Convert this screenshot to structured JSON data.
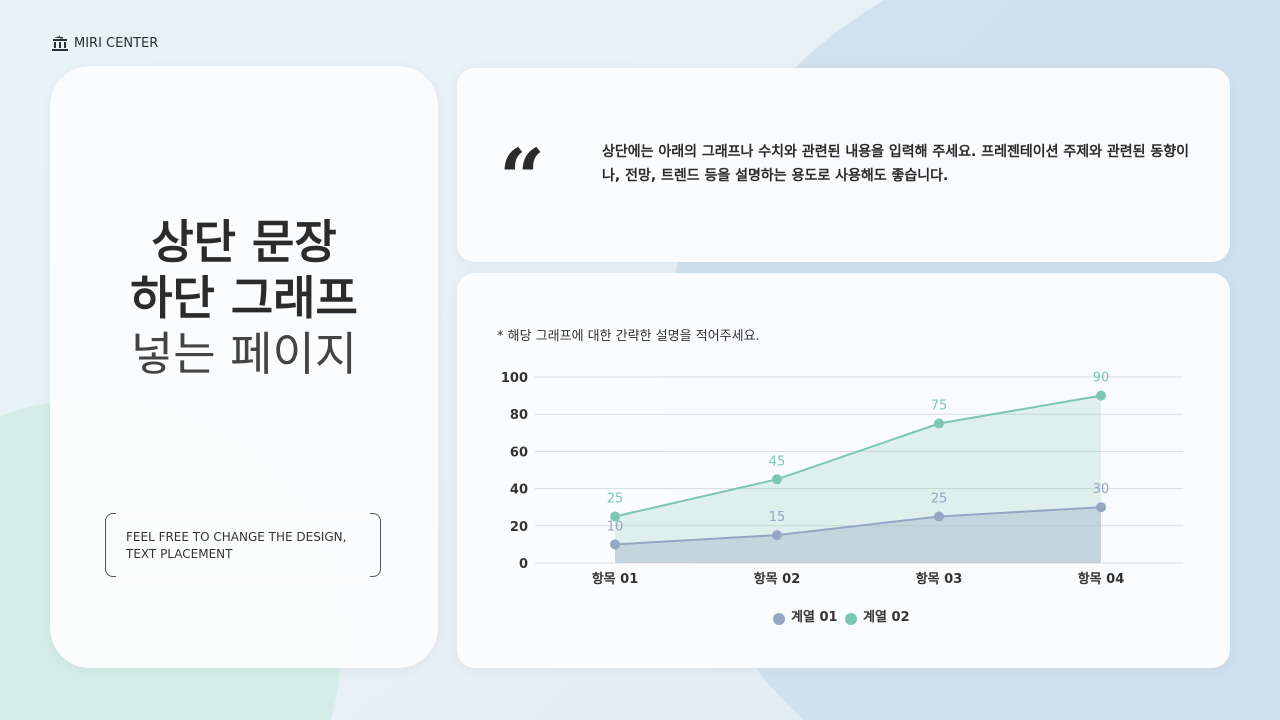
{
  "logo": {
    "text": "MIRI CENTER",
    "icon": "building-icon"
  },
  "left": {
    "title_line1": "상단 문장",
    "title_line2": "하단 그래프",
    "title_line3": "넣는 페이지",
    "note": "FEEL FREE TO CHANGE THE DESIGN, TEXT PLACEMENT"
  },
  "quote": {
    "icon": "quote-icon",
    "text": "상단에는 아래의 그래프나 수치와 관련된 내용을 입력해 주세요. 프레젠테이션 주제와 관련된 동향이나, 전망, 트렌드 등을 설명하는 용도로 사용해도 좋습니다."
  },
  "chart_panel": {
    "description": "* 해당 그래프에 대한 간략한 설명을 적어주세요."
  },
  "chart_data": {
    "type": "area",
    "categories": [
      "항목 01",
      "항목 02",
      "항목 03",
      "항목 04"
    ],
    "series": [
      {
        "name": "계열 01",
        "values": [
          10,
          15,
          25,
          30
        ],
        "color": "#94a6c4"
      },
      {
        "name": "계열 02",
        "values": [
          25,
          45,
          75,
          90
        ],
        "color": "#7cc6b4"
      }
    ],
    "ylim": [
      0,
      100
    ],
    "yticks": [
      0,
      20,
      40,
      60,
      80,
      100
    ],
    "grid": true,
    "legend": "bottom",
    "data_labels": true
  }
}
